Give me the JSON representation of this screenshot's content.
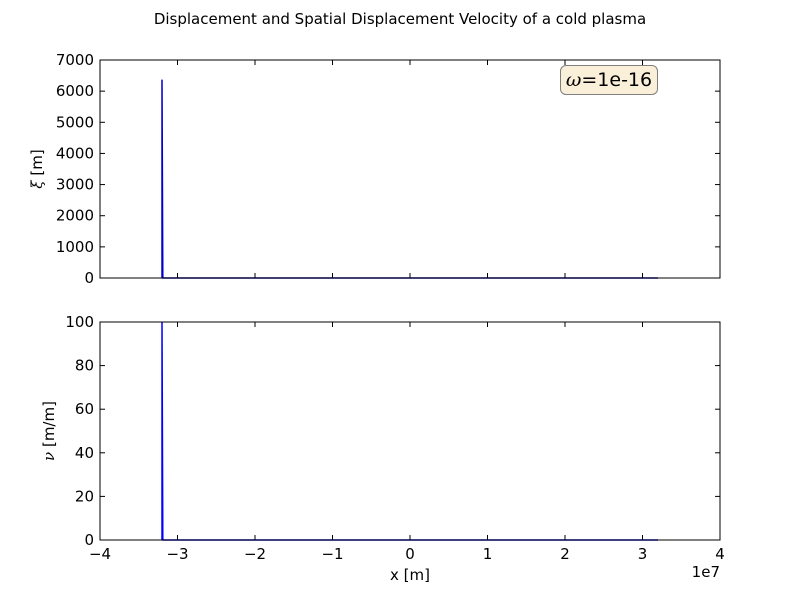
{
  "chart_data": [
    {
      "type": "line",
      "suptitle": "Displacement and Spatial Displacement Velocity of a cold plasma",
      "ylabel_symbol": "ξ",
      "ylabel_unit": "[m]",
      "xlim": [
        -40000000,
        40000000
      ],
      "ylim": [
        0,
        7000
      ],
      "yticks": [
        0,
        1000,
        2000,
        3000,
        4000,
        5000,
        6000,
        7000
      ],
      "series": [
        {
          "name": "xi",
          "color": "#0000cc",
          "x": [
            -32000000,
            -32000000,
            -31900000,
            32000000
          ],
          "y": [
            0,
            6370,
            0,
            0
          ]
        }
      ],
      "annotation": {
        "symbol": "ω",
        "equals": "=",
        "value": "1e-16"
      }
    },
    {
      "type": "line",
      "ylabel_symbol": "ν",
      "ylabel_unit": "[m/m]",
      "xlabel": "x [m]",
      "x_offset_text": "1e7",
      "xlim": [
        -40000000,
        40000000
      ],
      "ylim": [
        0,
        100
      ],
      "xticks": [
        -40000000,
        -30000000,
        -20000000,
        -10000000,
        0,
        10000000,
        20000000,
        30000000,
        40000000
      ],
      "xtick_labels": [
        "−4",
        "−3",
        "−2",
        "−1",
        "0",
        "1",
        "2",
        "3",
        "4"
      ],
      "yticks": [
        0,
        20,
        40,
        60,
        80,
        100
      ],
      "series": [
        {
          "name": "nu",
          "color": "#0000ff",
          "x": [
            -32000000,
            -32000000,
            -31900000,
            32000000
          ],
          "y": [
            0,
            100,
            0,
            0
          ]
        }
      ]
    }
  ]
}
